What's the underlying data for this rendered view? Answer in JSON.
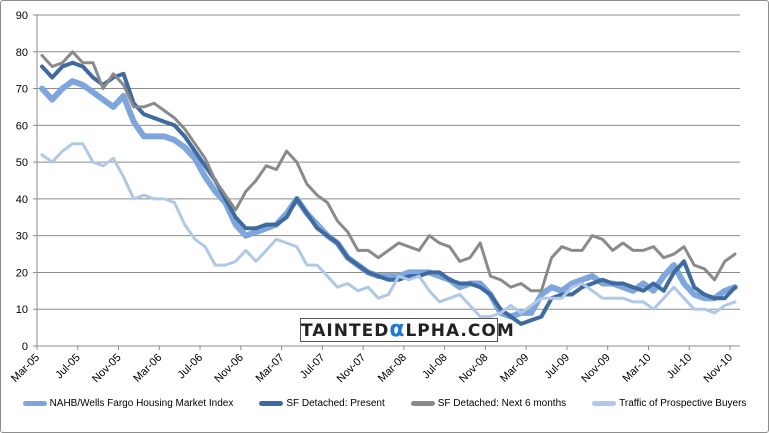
{
  "chart_data": {
    "type": "line",
    "title": "",
    "xlabel": "",
    "ylabel": "",
    "ylim": [
      0,
      90
    ],
    "yticks": [
      0,
      10,
      20,
      30,
      40,
      50,
      60,
      70,
      80,
      90
    ],
    "xtick_labels": [
      "Mar-05",
      "Jul-05",
      "Nov-05",
      "Mar-06",
      "Jul-06",
      "Nov-06",
      "Mar-07",
      "Jul-07",
      "Nov-07",
      "Mar-08",
      "Jul-08",
      "Nov-08",
      "Mar-09",
      "Jul-09",
      "Nov-09",
      "Mar-10",
      "Jul-10",
      "Nov-10"
    ],
    "x_start": "Mar-05",
    "x_end": "Nov-10",
    "frequency": "monthly",
    "grid": true,
    "legend_position": "bottom",
    "series": [
      {
        "name": "NAHB/Wells Fargo Housing Market Index",
        "color": "#7ea6dc",
        "values": [
          70,
          67,
          70,
          72,
          71,
          69,
          67,
          65,
          68,
          61,
          57,
          57,
          57,
          56,
          54,
          51,
          46,
          42,
          39,
          33,
          30,
          31,
          32,
          33,
          36,
          40,
          36,
          33,
          30,
          28,
          24,
          22,
          20,
          19,
          19,
          19,
          20,
          20,
          20,
          19,
          18,
          16,
          17,
          17,
          14,
          9,
          8,
          9,
          9,
          14,
          16,
          15,
          17,
          18,
          19,
          17,
          17,
          16,
          15,
          17,
          15,
          19,
          22,
          17,
          14,
          13,
          13,
          15,
          16
        ]
      },
      {
        "name": "SF Detached: Present",
        "color": "#3e6aa0",
        "values": [
          76,
          73,
          76,
          77,
          76,
          73,
          71,
          73,
          74,
          66,
          63,
          62,
          61,
          60,
          57,
          53,
          49,
          45,
          40,
          35,
          32,
          32,
          33,
          33,
          35,
          40,
          36,
          32,
          30,
          28,
          24,
          22,
          20,
          19,
          18,
          18,
          19,
          19,
          20,
          20,
          18,
          17,
          17,
          16,
          14,
          10,
          8,
          6,
          7,
          8,
          13,
          14,
          14,
          16,
          17,
          18,
          17,
          17,
          16,
          15,
          17,
          15,
          20,
          23,
          16,
          14,
          13,
          13,
          16
        ]
      },
      {
        "name": "SF Detached: Next 6 months",
        "color": "#8a8a8a",
        "values": [
          79,
          76,
          77,
          80,
          77,
          77,
          70,
          74,
          71,
          65,
          65,
          66,
          64,
          62,
          59,
          55,
          51,
          45,
          41,
          37,
          42,
          45,
          49,
          48,
          53,
          50,
          44,
          41,
          39,
          34,
          31,
          26,
          26,
          24,
          26,
          28,
          27,
          26,
          30,
          28,
          27,
          23,
          24,
          28,
          19,
          18,
          16,
          17,
          15,
          15,
          24,
          27,
          26,
          26,
          30,
          29,
          26,
          28,
          26,
          26,
          27,
          24,
          25,
          27,
          22,
          21,
          18,
          23,
          25
        ]
      },
      {
        "name": "Traffic of Prospective Buyers",
        "color": "#b0c8e8",
        "values": [
          52,
          50,
          53,
          55,
          55,
          50,
          49,
          51,
          46,
          40,
          41,
          40,
          40,
          39,
          33,
          29,
          27,
          22,
          22,
          23,
          26,
          23,
          26,
          29,
          28,
          27,
          22,
          22,
          19,
          16,
          17,
          15,
          16,
          13,
          14,
          19,
          18,
          19,
          15,
          12,
          13,
          14,
          11,
          8,
          8,
          9,
          11,
          9,
          11,
          13,
          13,
          13,
          16,
          17,
          15,
          13,
          13,
          13,
          12,
          12,
          10,
          13,
          16,
          13,
          10,
          10,
          9,
          11,
          12
        ]
      }
    ]
  },
  "watermark": "TAINTEDαLPHA.COM"
}
